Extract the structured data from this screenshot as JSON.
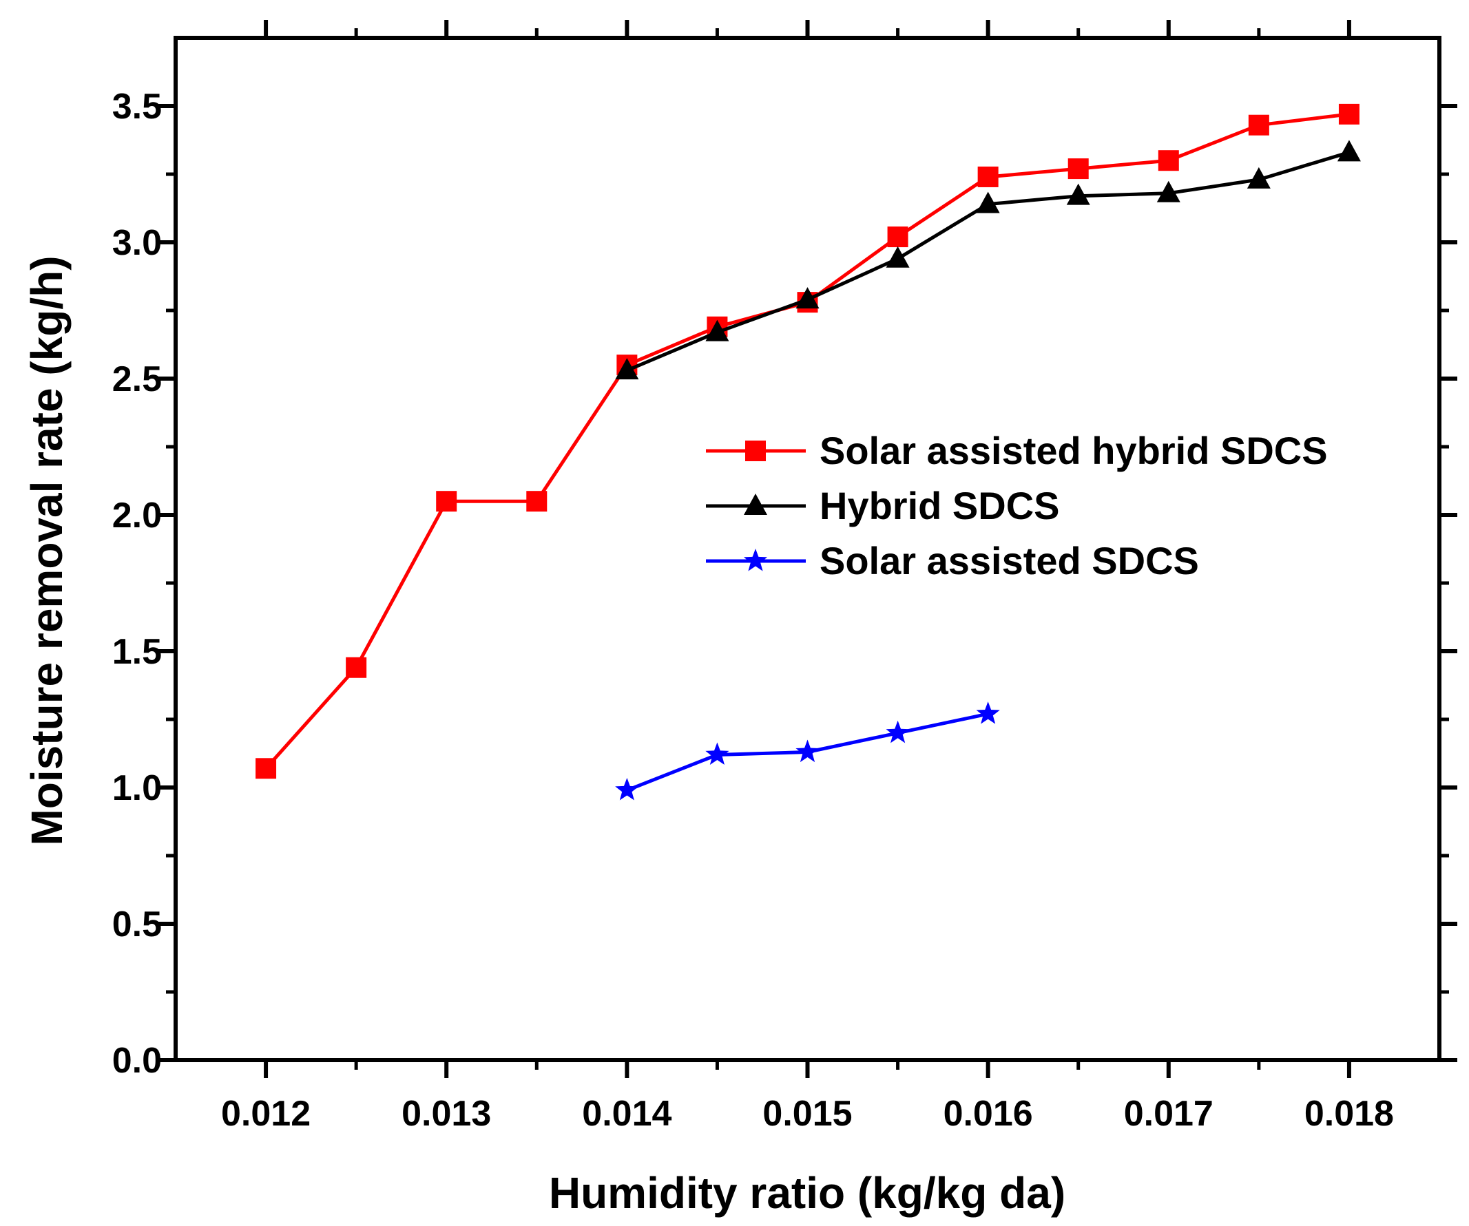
{
  "chart_data": {
    "type": "line",
    "title": "",
    "xlabel": "Humidity ratio (kg/kg da)",
    "ylabel": "Moisture removal rate (kg/h)",
    "xlim": [
      0.0115,
      0.0185
    ],
    "ylim": [
      0.0,
      3.75
    ],
    "x_ticks": [
      0.012,
      0.013,
      0.014,
      0.015,
      0.016,
      0.017,
      0.018
    ],
    "x_tick_labels": [
      "0.012",
      "0.013",
      "0.014",
      "0.015",
      "0.016",
      "0.017",
      "0.018"
    ],
    "y_ticks": [
      0.0,
      0.5,
      1.0,
      1.5,
      2.0,
      2.5,
      3.0,
      3.5
    ],
    "y_tick_labels": [
      "0.0",
      "0.5",
      "1.0",
      "1.5",
      "2.0",
      "2.5",
      "3.0",
      "3.5"
    ],
    "grid": false,
    "legend_position": "center-right",
    "series": [
      {
        "name": "Solar assisted hybrid SDCS",
        "color": "#ff0000",
        "marker": "square",
        "x": [
          0.012,
          0.0125,
          0.013,
          0.0135,
          0.014,
          0.0145,
          0.015,
          0.0155,
          0.016,
          0.0165,
          0.017,
          0.0175,
          0.018
        ],
        "values": [
          1.07,
          1.44,
          2.05,
          2.05,
          2.55,
          2.69,
          2.78,
          3.02,
          3.24,
          3.27,
          3.3,
          3.43,
          3.47
        ]
      },
      {
        "name": "Hybrid SDCS",
        "color": "#000000",
        "marker": "triangle",
        "x": [
          0.014,
          0.0145,
          0.015,
          0.0155,
          0.016,
          0.0165,
          0.017,
          0.0175,
          0.018
        ],
        "values": [
          2.53,
          2.67,
          2.79,
          2.94,
          3.14,
          3.17,
          3.18,
          3.23,
          3.33
        ]
      },
      {
        "name": "Solar assisted SDCS",
        "color": "#0000ff",
        "marker": "star",
        "x": [
          0.014,
          0.0145,
          0.015,
          0.0155,
          0.016
        ],
        "values": [
          0.99,
          1.12,
          1.13,
          1.2,
          1.27
        ]
      }
    ]
  }
}
